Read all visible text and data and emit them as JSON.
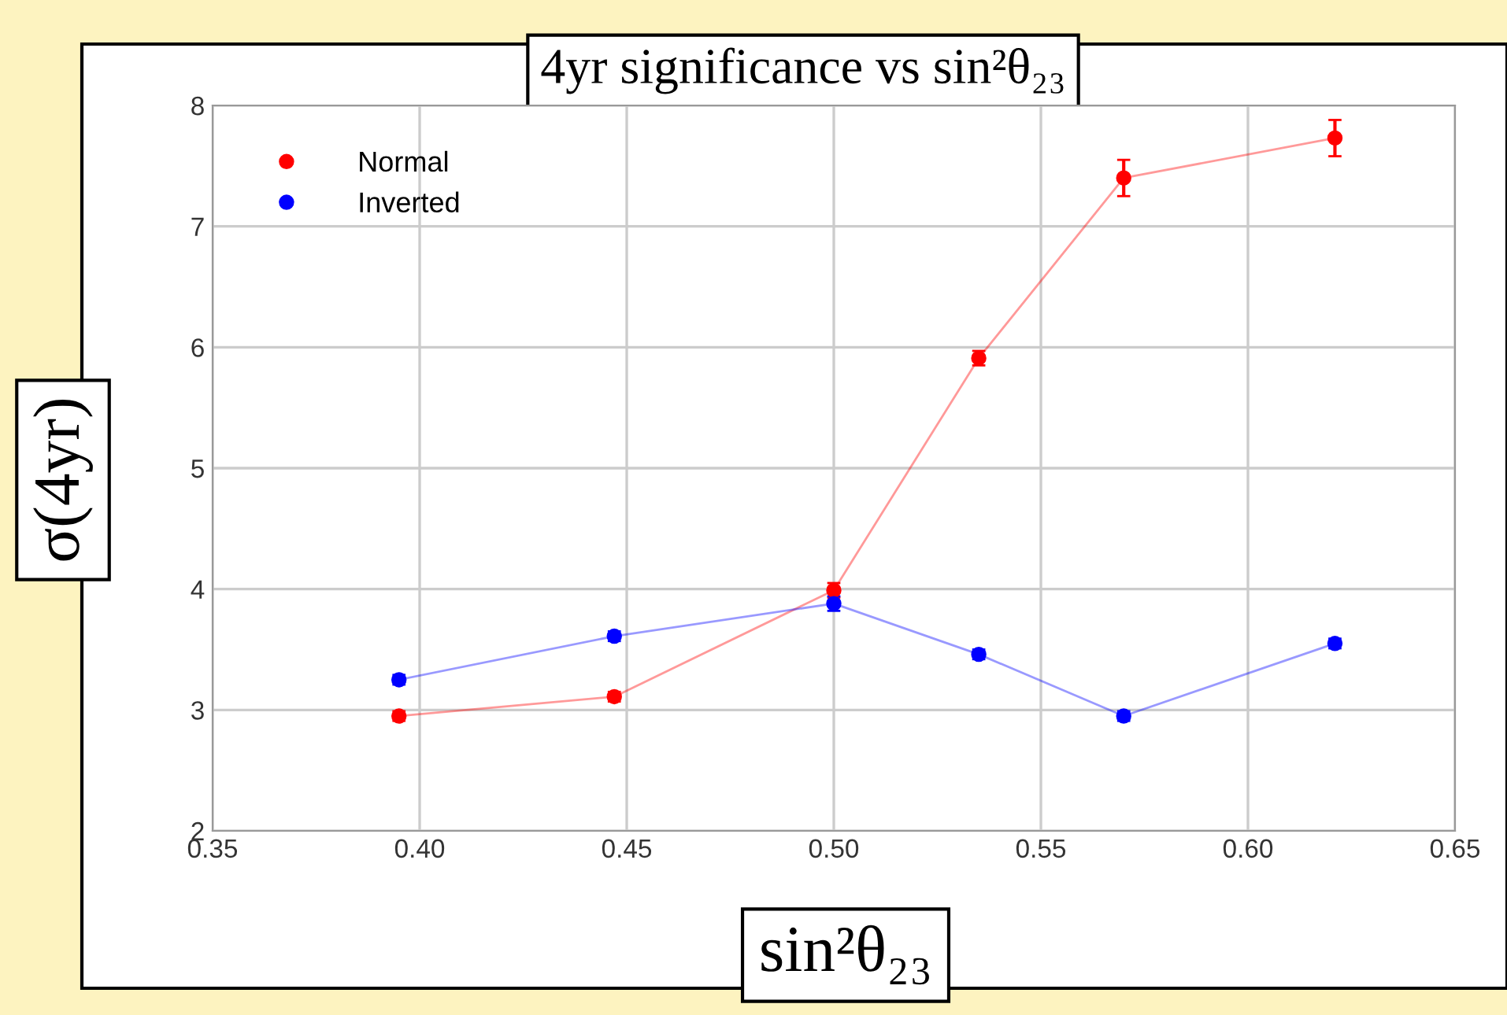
{
  "chart_data": {
    "type": "line",
    "title": "4yr significance vs sin²θ₂₃",
    "xlabel": "sin²θ₂₃",
    "ylabel": "σ(4yr)",
    "x": [
      0.395,
      0.447,
      0.5,
      0.535,
      0.57,
      0.621
    ],
    "series": [
      {
        "name": "Normal",
        "color": "#ff0000",
        "values": [
          2.95,
          3.11,
          3.99,
          5.91,
          7.4,
          7.73
        ],
        "errors": [
          0.04,
          0.04,
          0.06,
          0.06,
          0.15,
          0.15
        ]
      },
      {
        "name": "Inverted",
        "color": "#0000ff",
        "values": [
          3.25,
          3.61,
          3.88,
          3.46,
          2.95,
          3.55
        ],
        "errors": [
          0.04,
          0.04,
          0.06,
          0.04,
          0.04,
          0.04
        ]
      }
    ],
    "xlim": [
      0.35,
      0.65
    ],
    "xticks": [
      {
        "value": 0.35,
        "label": "0.35"
      },
      {
        "value": 0.4,
        "label": "0.40"
      },
      {
        "value": 0.45,
        "label": "0.45"
      },
      {
        "value": 0.5,
        "label": "0.50"
      },
      {
        "value": 0.55,
        "label": "0.55"
      },
      {
        "value": 0.6,
        "label": "0.60"
      },
      {
        "value": 0.65,
        "label": "0.65"
      }
    ],
    "ylim": [
      2,
      8
    ],
    "yticks": [
      2,
      3,
      4,
      5,
      6,
      7,
      8
    ],
    "grid": true,
    "legend": "top left",
    "marker": "circle",
    "line_style": "solid"
  }
}
